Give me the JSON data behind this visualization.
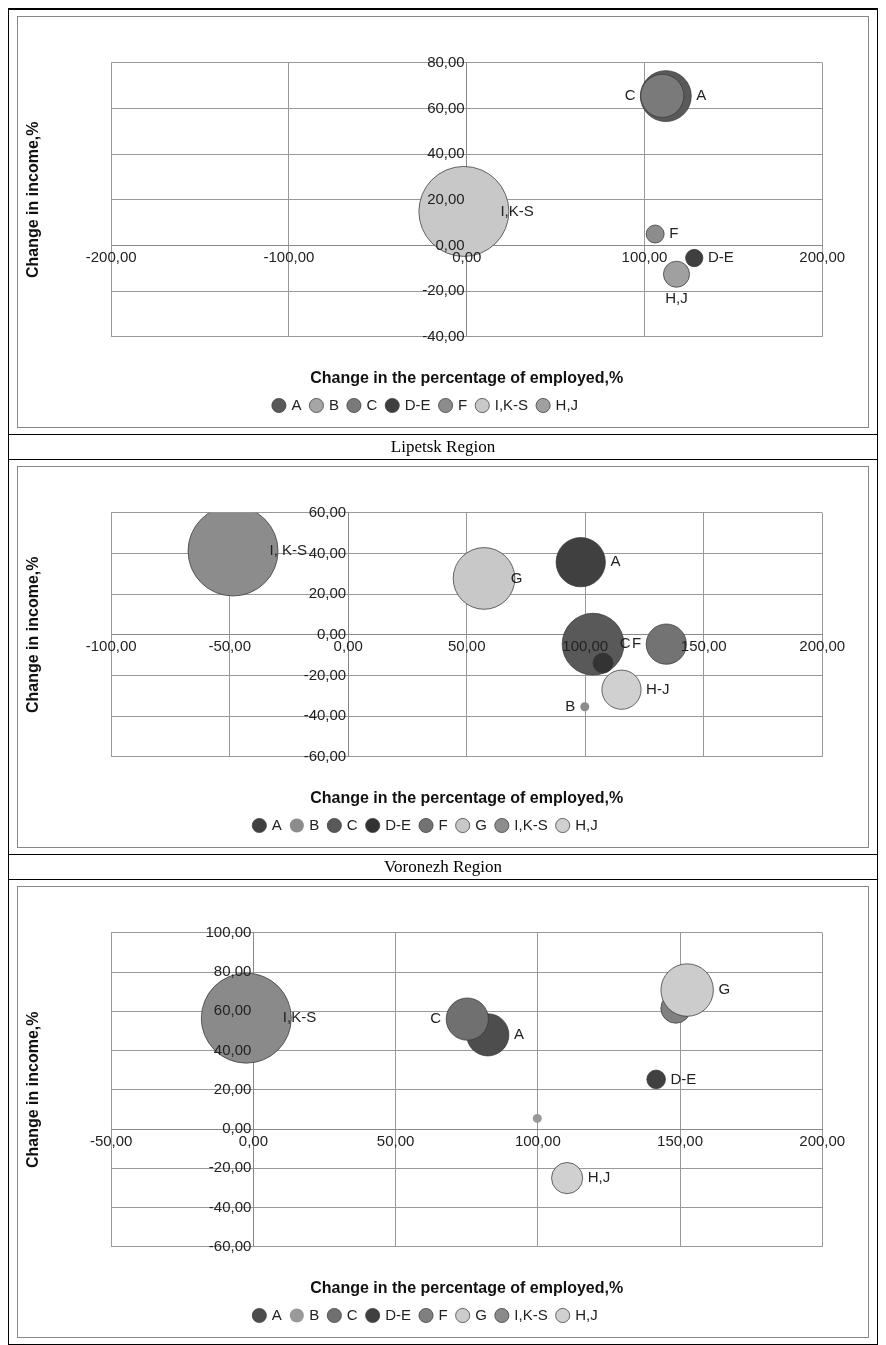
{
  "chart_data": [
    {
      "type": "bubble",
      "xlabel": "Change in the percentage of employed,%",
      "ylabel": "Change in income,%",
      "xlim": [
        -200,
        200
      ],
      "ylim": [
        -40,
        80
      ],
      "xticks": [
        {
          "value": -200,
          "label": "-200,00"
        },
        {
          "value": -100,
          "label": "-100,00"
        },
        {
          "value": 0,
          "label": "0,00"
        },
        {
          "value": 100,
          "label": "100,00"
        },
        {
          "value": 200,
          "label": "200,00"
        }
      ],
      "yticks": [
        {
          "value": -40,
          "label": "-40,00"
        },
        {
          "value": -20,
          "label": "-20,00"
        },
        {
          "value": 0,
          "label": "0,00"
        },
        {
          "value": 20,
          "label": "20,00"
        },
        {
          "value": 40,
          "label": "40,00"
        },
        {
          "value": 60,
          "label": "60,00"
        },
        {
          "value": 80,
          "label": "80,00"
        }
      ],
      "grid": true,
      "legend": "bottom",
      "series": [
        {
          "name": "A",
          "color": "#595959",
          "x": [
            112
          ],
          "values": [
            65.4
          ],
          "sizes": [
            0.32
          ]
        },
        {
          "name": "B",
          "color": "#a6a6a6"
        },
        {
          "name": "C",
          "color": "#7a7a7a",
          "x": [
            110
          ],
          "values": [
            65.5
          ],
          "sizes": [
            0.23
          ]
        },
        {
          "name": "D-E",
          "color": "#3f3f3f",
          "x": [
            128
          ],
          "values": [
            -5.5
          ],
          "sizes": [
            0.037
          ]
        },
        {
          "name": "F",
          "color": "#8c8c8c",
          "x": [
            106
          ],
          "values": [
            5
          ],
          "sizes": [
            0.04
          ]
        },
        {
          "name": "I,K-S",
          "color": "#c8c8c8",
          "x": [
            -1.6
          ],
          "values": [
            14.9
          ],
          "sizes": [
            1
          ]
        },
        {
          "name": "H,J",
          "color": "#a0a0a0",
          "x": [
            118
          ],
          "values": [
            -12.6
          ],
          "sizes": [
            0.084
          ]
        }
      ],
      "annotations": [
        {
          "text": "A",
          "x": 112,
          "y": 65.4
        },
        {
          "text": "C",
          "x": 110,
          "y": 65.5
        },
        {
          "text": "I,K-S",
          "x": -1.6,
          "y": 14.9
        },
        {
          "text": "F",
          "x": 106,
          "y": 5
        },
        {
          "text": "D-E",
          "x": 128,
          "y": -5.5
        },
        {
          "text": "H,J",
          "x": 118,
          "y": -12.6
        }
      ]
    },
    {
      "type": "bubble",
      "title": "Lipetsk Region",
      "xlabel": "Change in the percentage of employed,%",
      "ylabel": "Change in income,%",
      "xlim": [
        -100,
        200
      ],
      "ylim": [
        -60,
        60
      ],
      "xticks": [
        {
          "value": -100,
          "label": "-100,00"
        },
        {
          "value": -50,
          "label": "-50,00"
        },
        {
          "value": 0,
          "label": "0,00"
        },
        {
          "value": 50,
          "label": "50,00"
        },
        {
          "value": 100,
          "label": "100,00"
        },
        {
          "value": 150,
          "label": "150,00"
        },
        {
          "value": 200,
          "label": "200,00"
        }
      ],
      "yticks": [
        {
          "value": -60,
          "label": "-60,00"
        },
        {
          "value": -40,
          "label": "-40,00"
        },
        {
          "value": -20,
          "label": "-20,00"
        },
        {
          "value": 0,
          "label": "0,00"
        },
        {
          "value": 20,
          "label": "20,00"
        },
        {
          "value": 40,
          "label": "40,00"
        },
        {
          "value": 60,
          "label": "60,00"
        }
      ],
      "grid": true,
      "legend": "bottom",
      "series": [
        {
          "name": "A",
          "color": "#404040",
          "x": [
            98.1
          ],
          "values": [
            35.7
          ],
          "sizes": [
            0.3
          ]
        },
        {
          "name": "B",
          "color": "#8c8c8c",
          "x": [
            99.8
          ],
          "values": [
            -35.4
          ],
          "sizes": [
            0.01
          ]
        },
        {
          "name": "C",
          "color": "#595959",
          "x": [
            103.3
          ],
          "values": [
            -4.6
          ],
          "sizes": [
            0.47
          ]
        },
        {
          "name": "D-E",
          "color": "#333333",
          "x": [
            107.5
          ],
          "values": [
            -13.9
          ],
          "sizes": [
            0.05
          ]
        },
        {
          "name": "F",
          "color": "#737373",
          "x": [
            134.2
          ],
          "values": [
            -4.6
          ],
          "sizes": [
            0.2
          ]
        },
        {
          "name": "G",
          "color": "#c8c8c8",
          "x": [
            57.3
          ],
          "values": [
            27.7
          ],
          "sizes": [
            0.47
          ]
        },
        {
          "name": "I,K-S",
          "color": "#8c8c8c",
          "x": [
            -48.6
          ],
          "values": [
            41.2
          ],
          "sizes": [
            1
          ]
        },
        {
          "name": "H,J",
          "color": "#d0d0d0",
          "x": [
            115.3
          ],
          "values": [
            -27
          ],
          "sizes": [
            0.19
          ]
        }
      ],
      "annotations": [
        {
          "text": "I, K-S",
          "x": -48.6,
          "y": 41.2
        },
        {
          "text": "G",
          "x": 57.3,
          "y": 27.7
        },
        {
          "text": "A",
          "x": 98.1,
          "y": 35.7
        },
        {
          "text": "C",
          "x": 103.3,
          "y": -4.6
        },
        {
          "text": "F",
          "x": 134.2,
          "y": -4.6
        },
        {
          "text": "H-J",
          "x": 115.3,
          "y": -27
        },
        {
          "text": "B",
          "x": 99.8,
          "y": -35.4
        }
      ]
    },
    {
      "type": "bubble",
      "title": "Voronezh Region",
      "xlabel": "Change in the percentage of employed,%",
      "ylabel": "Change in income,%",
      "xlim": [
        -50,
        200
      ],
      "ylim": [
        -60,
        100
      ],
      "xticks": [
        {
          "value": -50,
          "label": "-50,00"
        },
        {
          "value": 0,
          "label": "0,00"
        },
        {
          "value": 50,
          "label": "50,00"
        },
        {
          "value": 100,
          "label": "100,00"
        },
        {
          "value": 150,
          "label": "150,00"
        },
        {
          "value": 200,
          "label": "200,00"
        }
      ],
      "yticks": [
        {
          "value": -60,
          "label": "-60,00"
        },
        {
          "value": -40,
          "label": "-40,00"
        },
        {
          "value": -20,
          "label": "-20,00"
        },
        {
          "value": 0,
          "label": "0,00"
        },
        {
          "value": 20,
          "label": "20,00"
        },
        {
          "value": 40,
          "label": "40,00"
        },
        {
          "value": 60,
          "label": "60,00"
        },
        {
          "value": 80,
          "label": "80,00"
        },
        {
          "value": 100,
          "label": "100,00"
        }
      ],
      "grid": true,
      "legend": "bottom",
      "series": [
        {
          "name": "A",
          "color": "#4d4d4d",
          "x": [
            82.4
          ],
          "values": [
            48
          ],
          "sizes": [
            0.22
          ]
        },
        {
          "name": "B",
          "color": "#999999",
          "x": [
            99.8
          ],
          "values": [
            5.4
          ],
          "sizes": [
            0.01
          ]
        },
        {
          "name": "C",
          "color": "#707070",
          "x": [
            75.2
          ],
          "values": [
            56
          ],
          "sizes": [
            0.22
          ]
        },
        {
          "name": "D-E",
          "color": "#404040",
          "x": [
            141.6
          ],
          "values": [
            25.3
          ],
          "sizes": [
            0.043
          ]
        },
        {
          "name": "F",
          "color": "#808080",
          "x": [
            148.5
          ],
          "values": [
            61.5
          ],
          "sizes": [
            0.11
          ]
        },
        {
          "name": "G",
          "color": "#cccccc",
          "x": [
            152.5
          ],
          "values": [
            70.8
          ],
          "sizes": [
            0.34
          ]
        },
        {
          "name": "I,K-S",
          "color": "#8a8a8a",
          "x": [
            -2.5
          ],
          "values": [
            56.5
          ],
          "sizes": [
            1
          ]
        },
        {
          "name": "H,J",
          "color": "#d0d0d0",
          "x": [
            110.3
          ],
          "values": [
            -25
          ],
          "sizes": [
            0.12
          ]
        }
      ],
      "annotations": [
        {
          "text": "I,K-S",
          "x": -2.5,
          "y": 56.5
        },
        {
          "text": "C",
          "x": 75.2,
          "y": 56
        },
        {
          "text": "A",
          "x": 82.4,
          "y": 48
        },
        {
          "text": "G",
          "x": 152.5,
          "y": 70.8
        },
        {
          "text": "D-E",
          "x": 141.6,
          "y": 25.3
        },
        {
          "text": "H,J",
          "x": 110.3,
          "y": -25
        }
      ]
    }
  ]
}
